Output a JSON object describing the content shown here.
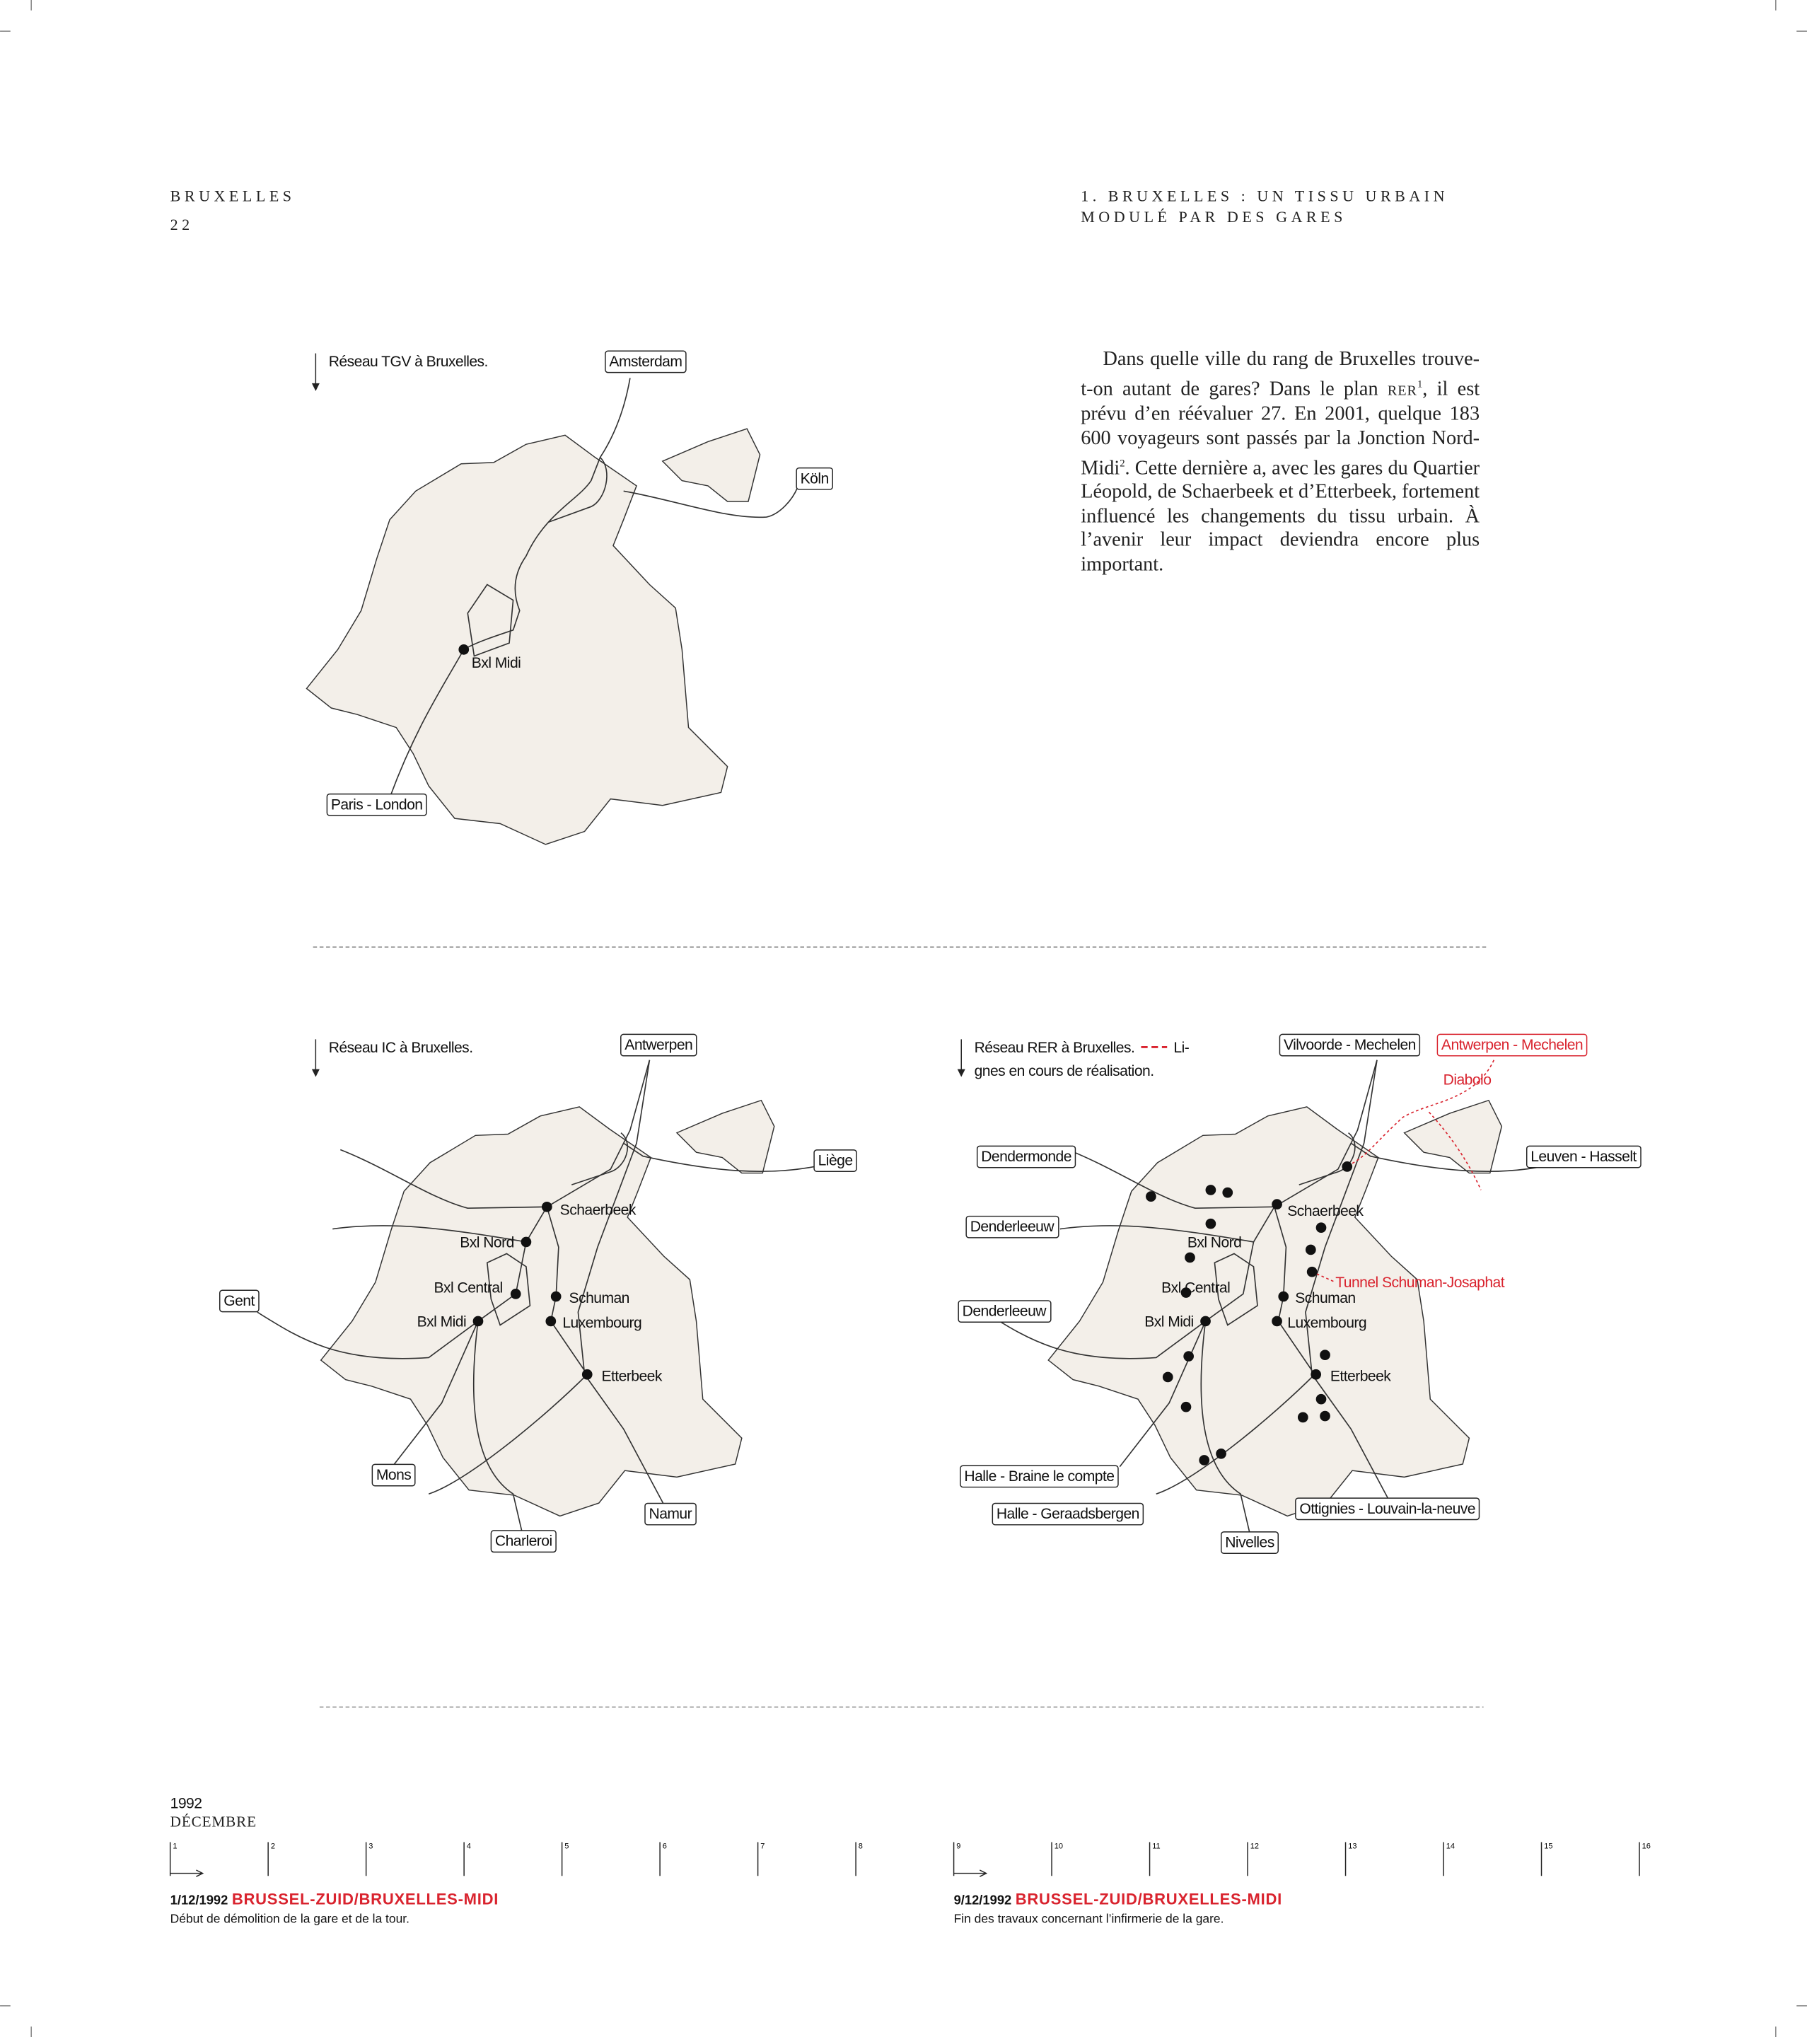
{
  "header": {
    "left_title": "BRUXELLES",
    "page_number": "22",
    "right_title_lines": [
      "1. BRUXELLES : UN TISSU URBAIN",
      "MODULÉ PAR DES GARES"
    ]
  },
  "intro": {
    "parts": [
      "Dans quelle ville du rang de Bruxelles trouve-t-on autant de gares? Dans le plan ",
      "RER",
      "1",
      ", il est prévu d’en réévaluer 27. En 2001, quelque 183 600 voyageurs sont passés par la Jonction Nord-Midi",
      "2",
      ". Cette dernière a, avec les gares du Quartier Léopold, de Schaerbeek et d’Etterbeek, fortement influencé les changements du tissu urbain. À l’avenir leur impact deviendra encore plus important."
    ]
  },
  "maps": [
    {
      "caption": [
        "Réseau TGV à Bruxelles."
      ],
      "destinations": [
        "Amsterdam",
        "Köln",
        "Paris - London"
      ],
      "stations": [
        "Bxl Midi"
      ]
    },
    {
      "caption": [
        "Réseau IC à Bruxelles."
      ],
      "destinations": [
        "Antwerpen",
        "Liège",
        "Gent",
        "Mons",
        "Charleroi",
        "Namur"
      ],
      "stations": [
        "Schaerbeek",
        "Bxl Nord",
        "Bxl Central",
        "Schuman",
        "Bxl Midi",
        "Luxembourg",
        "Etterbeek"
      ]
    },
    {
      "caption": [
        "Réseau RER à Bruxelles.",
        "Li-",
        "gnes en cours de réalisation."
      ],
      "destinations": [
        "Vilvoorde - Mechelen",
        "Dendermonde",
        "Leuven - Hasselt",
        "Denderleeuw",
        "Denderleeuw",
        "Halle - Braine le compte",
        "Halle - Geraadsbergen",
        "Nivelles",
        "Ottignies - Louvain-la-neuve"
      ],
      "projects": [
        "Antwerpen - Mechelen",
        "Diabolo",
        "Tunnel Schuman-Josaphat"
      ],
      "stations": [
        "Schaerbeek",
        "Bxl Nord",
        "Bxl Central",
        "Schuman",
        "Bxl Midi",
        "Luxembourg",
        "Etterbeek"
      ]
    }
  ],
  "timeline": {
    "year": "1992",
    "month": "DÉCEMBRE",
    "days": [
      1,
      2,
      3,
      4,
      5,
      6,
      7,
      8,
      9,
      10,
      11,
      12,
      13,
      14,
      15,
      16
    ],
    "events": [
      {
        "date": "1/12/1992",
        "title": "BRUSSEL-ZUID/BRUXELLES-MIDI",
        "text": "Début de démolition de la gare et de la tour."
      },
      {
        "date": "9/12/1992",
        "title": "BRUSSEL-ZUID/BRUXELLES-MIDI",
        "text": "Fin des travaux concernant l’infirmerie de la gare."
      }
    ]
  }
}
